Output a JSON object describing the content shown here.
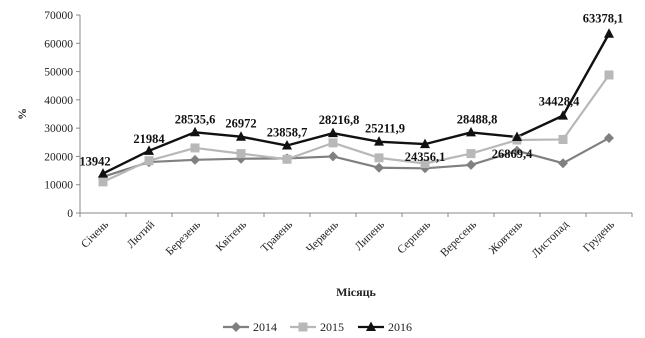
{
  "chart_data": {
    "type": "line",
    "categories": [
      "Січень",
      "Лютий",
      "Березень",
      "Квітень",
      "Травень",
      "Червень",
      "Липень",
      "Серпень",
      "Вересень",
      "Жовтень",
      "Листопад",
      "Грудень"
    ],
    "series": [
      {
        "name": "2014",
        "color": "#808080",
        "marker": "diamond",
        "values": [
          12800,
          18000,
          18800,
          19200,
          19300,
          20000,
          16000,
          15800,
          17000,
          22000,
          17600,
          26500
        ]
      },
      {
        "name": "2015",
        "color": "#b8b8b8",
        "marker": "square",
        "values": [
          11000,
          18500,
          23000,
          21000,
          19000,
          24800,
          19500,
          17500,
          21000,
          25800,
          26000,
          48800
        ]
      },
      {
        "name": "2016",
        "color": "#111111",
        "marker": "triangle",
        "values": [
          13942,
          21984,
          28535.6,
          26972,
          23858.7,
          28216.8,
          25211.9,
          24356.1,
          28488.8,
          26869.4,
          34428.4,
          63378.1
        ]
      }
    ],
    "data_labels": [
      "13942",
      "21984",
      "28535,6",
      "26972",
      "23858,7",
      "28216,8",
      "25211,9",
      "24356,1",
      "28488,8",
      "26869,4",
      "34428,4",
      "63378,1"
    ],
    "xlabel": "Місяць",
    "ylabel": "%",
    "ylim": [
      0,
      70000
    ],
    "yticks": [
      0,
      10000,
      20000,
      30000,
      40000,
      50000,
      60000,
      70000
    ],
    "grid": false,
    "legend_position": "bottom"
  }
}
